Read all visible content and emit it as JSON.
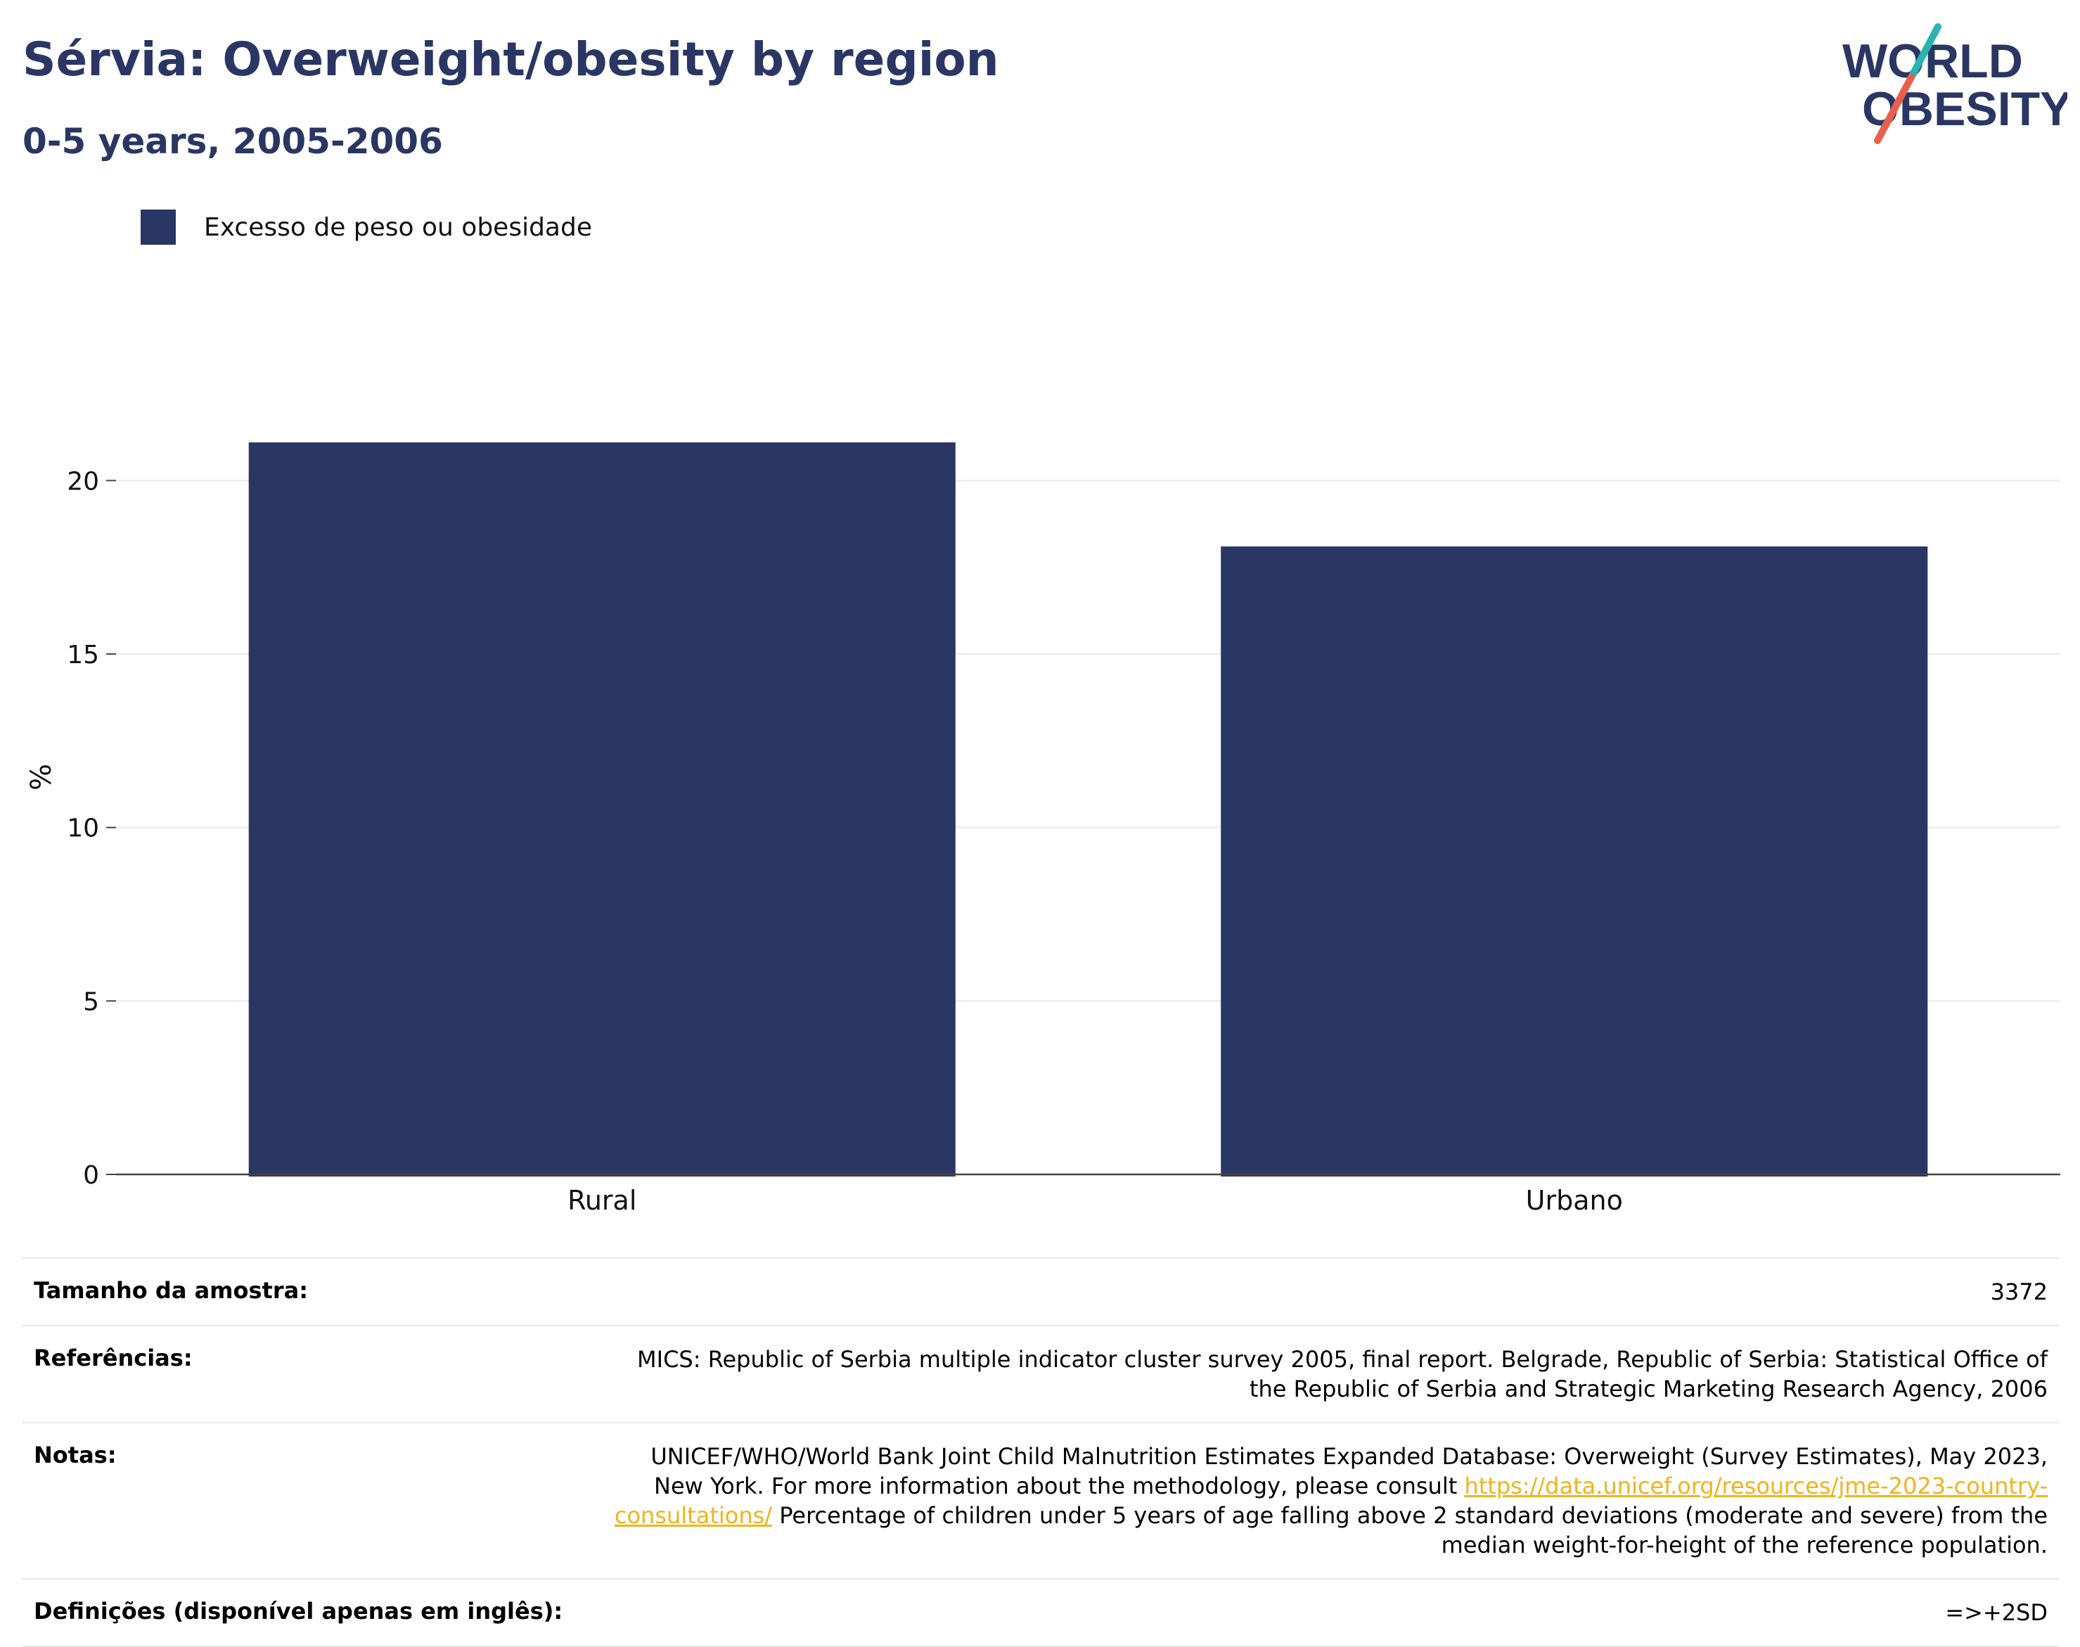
{
  "header": {
    "title": "Sérvia: Overweight/obesity by region",
    "subtitle": "0-5 years, 2005-2006"
  },
  "logo": {
    "line1": "WORLD",
    "line2": "OBESITY",
    "accent_teal": "#2bb3b1",
    "accent_red": "#e8604c",
    "color": "#2a3663"
  },
  "chart_data": {
    "type": "bar",
    "categories": [
      "Rural",
      "Urbano"
    ],
    "series": [
      {
        "name": "Excesso de peso ou obesidade",
        "values": [
          21.1,
          18.1
        ],
        "color": "#2a3663"
      }
    ],
    "ylabel": "%",
    "xlabel": "",
    "ylim": [
      0,
      22.5
    ],
    "yticks": [
      0,
      5,
      10,
      15,
      20
    ],
    "grid": true,
    "legend": "top-left"
  },
  "info": {
    "sample_label": "Tamanho da amostra:",
    "sample_value": "3372",
    "refs_label": "Referências:",
    "refs_value": "MICS: Republic of Serbia multiple indicator cluster survey 2005, final report. Belgrade, Republic of Serbia: Statistical Office of the Republic of Serbia and Strategic Marketing Research Agency, 2006",
    "notes_label": "Notas:",
    "notes_pre": "UNICEF/WHO/World Bank Joint Child Malnutrition Estimates Expanded Database: Overweight (Survey Estimates), May 2023, New York. For more information about the methodology, please consult ",
    "notes_link": "https://data.unicef.org/resources/jme-2023-country-consultations/",
    "notes_post": " Percentage of children under 5 years of age falling above 2 standard deviations (moderate and severe) from the median weight-for-height of the reference population.",
    "defs_label": "Definições (disponível apenas em inglês):",
    "defs_value": "=>+2SD"
  }
}
